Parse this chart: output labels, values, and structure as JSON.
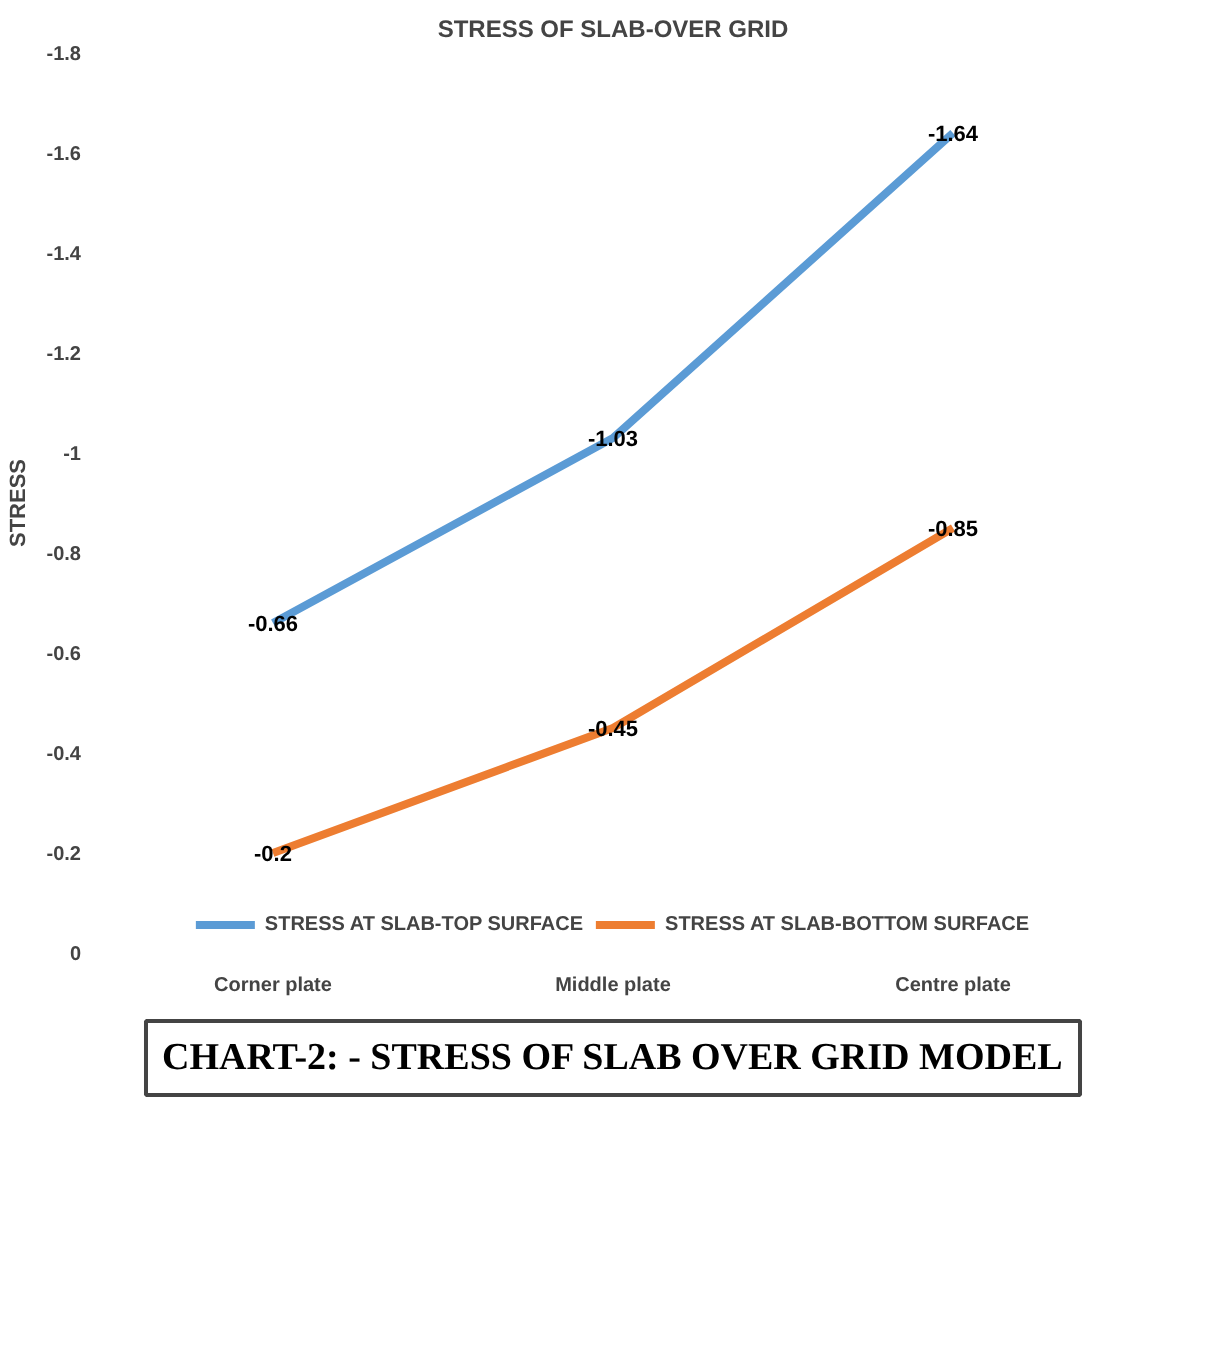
{
  "chart_data": {
    "type": "line",
    "title": "STRESS OF SLAB-OVER GRID",
    "ylabel": "STRESS",
    "categories": [
      "Corner plate",
      "Middle plate",
      "Centre plate"
    ],
    "series": [
      {
        "name": "STRESS AT SLAB-TOP SURFACE",
        "color": "#5b9bd5",
        "values": [
          -0.66,
          -1.03,
          -1.64
        ]
      },
      {
        "name": "STRESS AT SLAB-BOTTOM SURFACE",
        "color": "#ed7d31",
        "values": [
          -0.2,
          -0.45,
          -0.85
        ]
      }
    ],
    "ylim": [
      0,
      -1.8
    ],
    "yticks": [
      0,
      -0.2,
      -0.4,
      -0.6,
      -0.8,
      -1,
      -1.2,
      -1.4,
      -1.6,
      -1.8
    ],
    "data_labels": true,
    "grid": false,
    "legend": "bottom",
    "marker": "none",
    "line_style": "solid",
    "annotations": [
      "CHART-2: - STRESS OF SLAB OVER GRID MODEL"
    ]
  }
}
